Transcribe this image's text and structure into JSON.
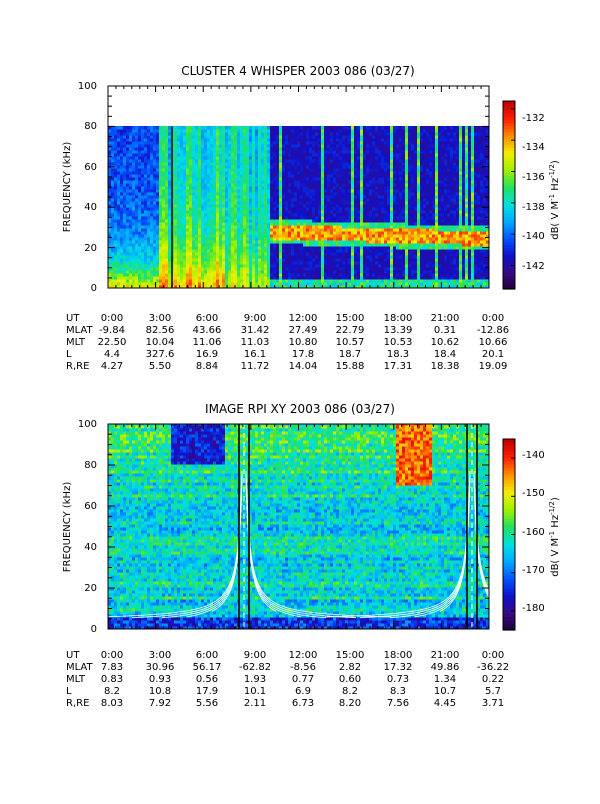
{
  "chart_data": [
    {
      "type": "heatmap",
      "title": "CLUSTER 4 WHISPER 2003 086 (03/27)",
      "ylabel": "FREQUENCY (kHz)",
      "ylim": [
        0,
        100
      ],
      "yticks": [
        "0",
        "20",
        "40",
        "60",
        "80",
        "100"
      ],
      "colorbar": {
        "label": "dB( V M",
        "label_sup1": "-1",
        "label_mid": " Hz",
        "label_sup2": "-1/2",
        "label_end": ")",
        "range": [
          -143.5,
          -131.5
        ],
        "ticks": [
          "-132",
          "-134",
          "-136",
          "-138",
          "-140",
          "-142"
        ],
        "tick_values": [
          -132,
          -134,
          -136,
          -138,
          -140,
          -142
        ]
      },
      "data_max_frequency": 80,
      "annotation_rows": [
        {
          "label": "UT",
          "values": [
            "0:00",
            "3:00",
            "6:00",
            "9:00",
            "12:00",
            "15:00",
            "18:00",
            "21:00",
            "0:00"
          ]
        },
        {
          "label": "MLAT",
          "values": [
            "-9.84",
            "82.56",
            "43.66",
            "31.42",
            "27.49",
            "22.79",
            "13.39",
            "0.31",
            "-12.86"
          ]
        },
        {
          "label": "MLT",
          "values": [
            "22.50",
            "10.04",
            "11.06",
            "11.03",
            "10.80",
            "10.57",
            "10.53",
            "10.62",
            "10.66"
          ]
        },
        {
          "label": "L",
          "values": [
            "4.4",
            "327.6",
            "16.9",
            "16.1",
            "17.8",
            "18.7",
            "18.3",
            "18.4",
            "20.1"
          ]
        },
        {
          "label": "R,RE",
          "values": [
            "4.27",
            "5.50",
            "8.84",
            "11.72",
            "14.04",
            "15.88",
            "17.31",
            "18.38",
            "19.09"
          ]
        }
      ]
    },
    {
      "type": "heatmap",
      "title": "IMAGE RPI XY 2003 086 (03/27)",
      "ylabel": "FREQUENCY (kHz)",
      "ylim": [
        0,
        100
      ],
      "yticks": [
        "0",
        "20",
        "40",
        "60",
        "80",
        "100"
      ],
      "colorbar": {
        "label": "dB( V M",
        "label_sup1": "-1",
        "label_mid": " Hz",
        "label_sup2": "-1/2",
        "label_end": ")",
        "range": [
          -185,
          -135
        ],
        "ticks": [
          "-140",
          "-150",
          "-160",
          "-170",
          "-180"
        ],
        "tick_values": [
          -140,
          -150,
          -160,
          -170,
          -180
        ]
      },
      "annotation_rows": [
        {
          "label": "UT",
          "values": [
            "0:00",
            "3:00",
            "6:00",
            "9:00",
            "12:00",
            "15:00",
            "18:00",
            "21:00",
            "0:00"
          ]
        },
        {
          "label": "MLAT",
          "values": [
            "7.83",
            "30.96",
            "56.17",
            "-62.82",
            "-8.56",
            "2.82",
            "17.32",
            "49.86",
            "-36.22"
          ]
        },
        {
          "label": "MLT",
          "values": [
            "0.83",
            "0.93",
            "0.56",
            "1.93",
            "0.77",
            "0.60",
            "0.73",
            "1.34",
            "0.22"
          ]
        },
        {
          "label": "L",
          "values": [
            "8.2",
            "10.8",
            "17.9",
            "10.1",
            "6.9",
            "8.2",
            "8.3",
            "10.7",
            "5.7"
          ]
        },
        {
          "label": "R,RE",
          "values": [
            "8.03",
            "7.92",
            "5.56",
            "2.11",
            "6.73",
            "8.20",
            "7.56",
            "4.45",
            "3.71"
          ]
        }
      ]
    }
  ],
  "colors": {
    "colormap": [
      "#1a0033",
      "#3a0a80",
      "#1010c8",
      "#0050ff",
      "#00a8ff",
      "#00e0e0",
      "#20e060",
      "#a0f000",
      "#f0f000",
      "#ff9000",
      "#ff2000",
      "#c00000"
    ]
  }
}
